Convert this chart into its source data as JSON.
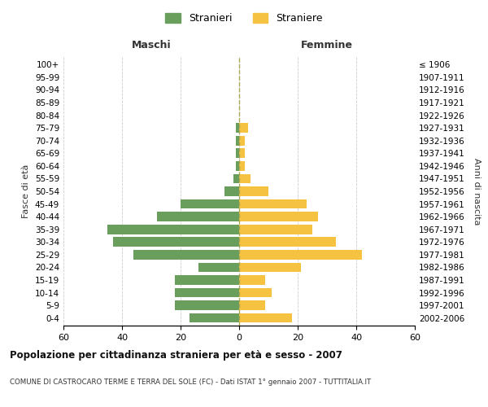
{
  "age_groups": [
    "0-4",
    "5-9",
    "10-14",
    "15-19",
    "20-24",
    "25-29",
    "30-34",
    "35-39",
    "40-44",
    "45-49",
    "50-54",
    "55-59",
    "60-64",
    "65-69",
    "70-74",
    "75-79",
    "80-84",
    "85-89",
    "90-94",
    "95-99",
    "100+"
  ],
  "birth_years": [
    "2002-2006",
    "1997-2001",
    "1992-1996",
    "1987-1991",
    "1982-1986",
    "1977-1981",
    "1972-1976",
    "1967-1971",
    "1962-1966",
    "1957-1961",
    "1952-1956",
    "1947-1951",
    "1942-1946",
    "1937-1941",
    "1932-1936",
    "1927-1931",
    "1922-1926",
    "1917-1921",
    "1912-1916",
    "1907-1911",
    "≤ 1906"
  ],
  "maschi": [
    17,
    22,
    22,
    22,
    14,
    36,
    43,
    45,
    28,
    20,
    5,
    2,
    1,
    1,
    1,
    1,
    0,
    0,
    0,
    0,
    0
  ],
  "femmine": [
    18,
    9,
    11,
    9,
    21,
    42,
    33,
    25,
    27,
    23,
    10,
    4,
    2,
    2,
    2,
    3,
    0,
    0,
    0,
    0,
    0
  ],
  "maschi_color": "#6a9e5c",
  "femmine_color": "#f5c242",
  "background_color": "#ffffff",
  "grid_color": "#cccccc",
  "title": "Popolazione per cittadinanza straniera per età e sesso - 2007",
  "subtitle": "COMUNE DI CASTROCARO TERME E TERRA DEL SOLE (FC) - Dati ISTAT 1° gennaio 2007 - TUTTITALIA.IT",
  "xlabel_left": "Maschi",
  "xlabel_right": "Femmine",
  "ylabel_left": "Fasce di età",
  "ylabel_right": "Anni di nascita",
  "xlim": 60,
  "legend_stranieri": "Stranieri",
  "legend_straniere": "Straniere"
}
